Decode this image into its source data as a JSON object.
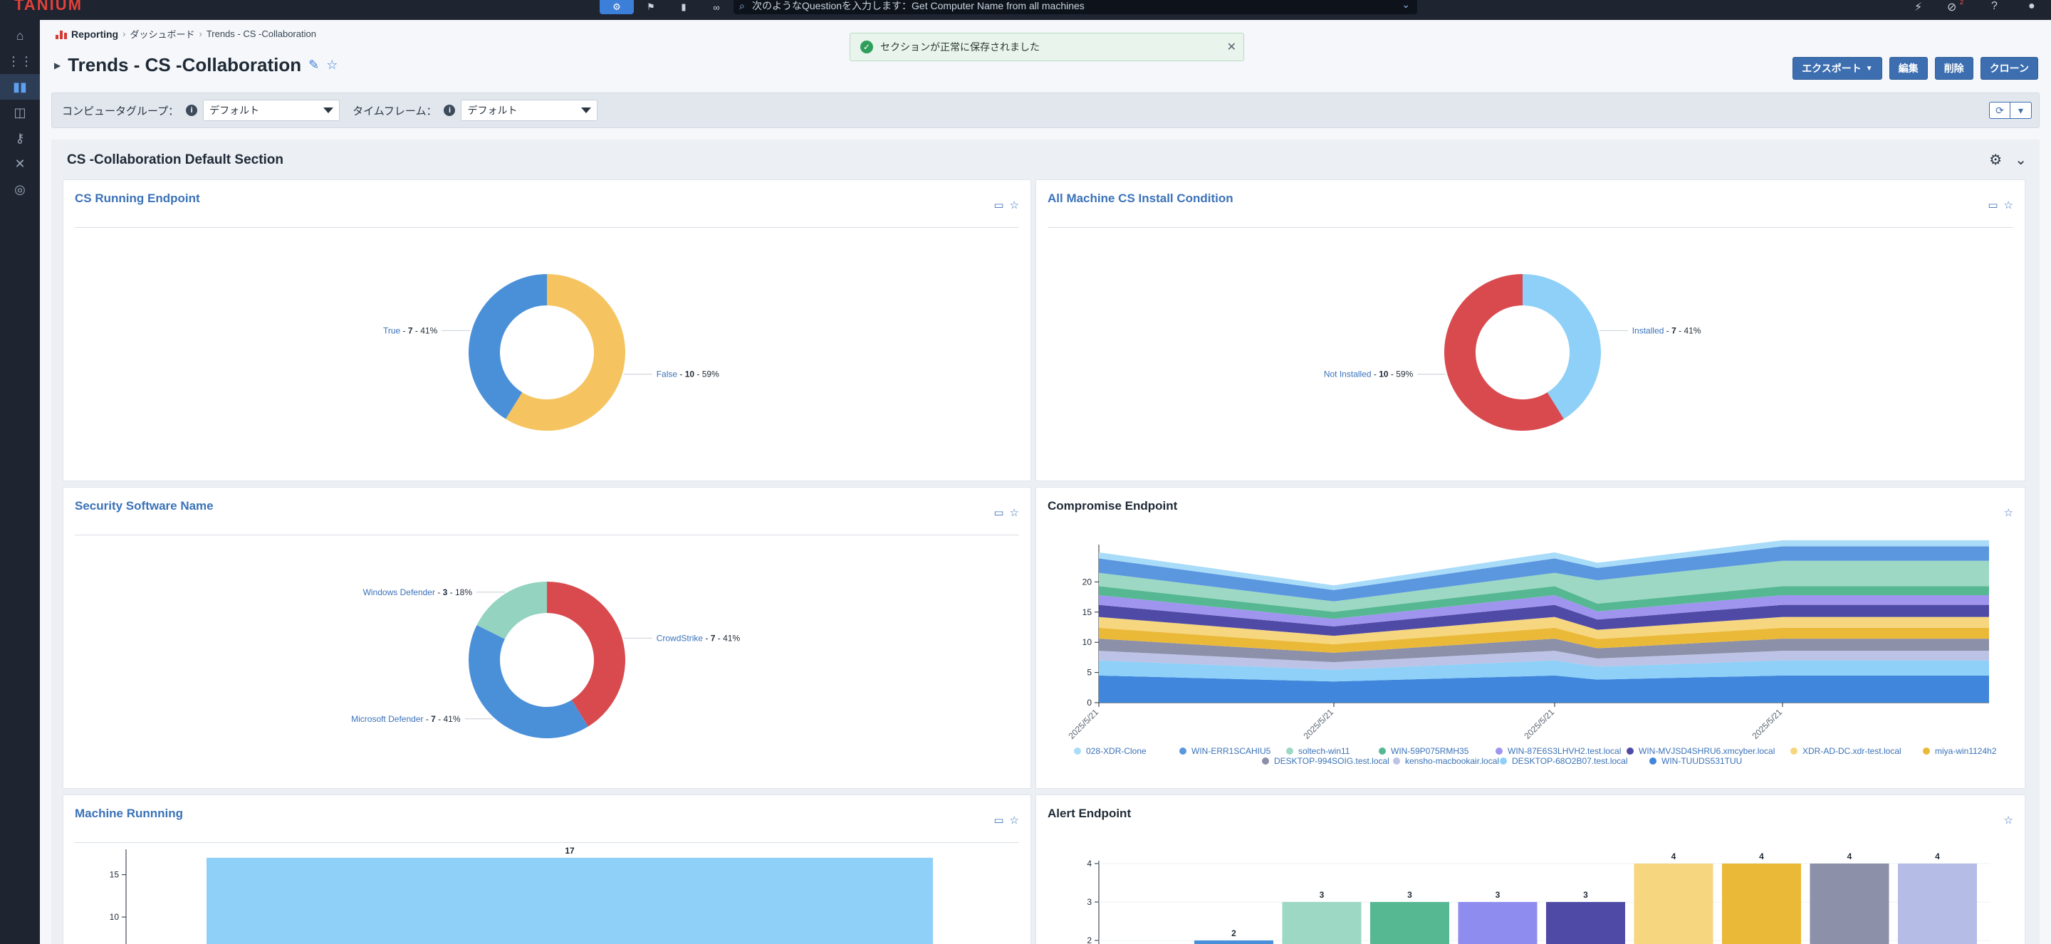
{
  "topbar": {
    "logo": "TANIUM",
    "search_placeholder": "次のようなQuestionを入力します：Get Computer Name from all machines",
    "badge": "2"
  },
  "breadcrumb": {
    "root": "Reporting",
    "level1": "ダッシュボード",
    "level2": "Trends - CS -Collaboration"
  },
  "toast": {
    "message": "セクションが正常に保存されました"
  },
  "page": {
    "title": "Trends - CS -Collaboration"
  },
  "actions": {
    "export": "エクスポート",
    "edit": "編集",
    "delete": "削除",
    "clone": "クローン"
  },
  "filters": {
    "computer_group_label": "コンピュータグループ：",
    "computer_group_value": "デフォルト",
    "timeframe_label": "タイムフレーム：",
    "timeframe_value": "デフォルト"
  },
  "section": {
    "title": "CS -Collaboration Default Section"
  },
  "cards": {
    "cs_running": {
      "title": "CS Running Endpoint"
    },
    "install_condition": {
      "title": "All Machine CS Install Condition"
    },
    "security_software": {
      "title": "Security Software Name"
    },
    "compromise": {
      "title": "Compromise Endpoint"
    },
    "machine_running": {
      "title": "Machine Runnning"
    },
    "alert_endpoint": {
      "title": "Alert Endpoint"
    }
  },
  "colors": {
    "accent": "#3d6eb0",
    "title_blue": "#3a72b8"
  },
  "chart_data": [
    {
      "id": "cs_running",
      "type": "pie",
      "title": "CS Running Endpoint",
      "slices": [
        {
          "label": "True",
          "value": 7,
          "percent": "41%",
          "color": "#4a90d9"
        },
        {
          "label": "False",
          "value": 10,
          "percent": "59%",
          "color": "#f5c460"
        }
      ]
    },
    {
      "id": "install_condition",
      "type": "pie",
      "title": "All Machine CS Install Condition",
      "slices": [
        {
          "label": "Installed",
          "value": 7,
          "percent": "41%",
          "color": "#8ed0f7"
        },
        {
          "label": "Not Installed",
          "value": 10,
          "percent": "59%",
          "color": "#d94a4f"
        }
      ]
    },
    {
      "id": "security_software",
      "type": "pie",
      "title": "Security Software Name",
      "slices": [
        {
          "label": "CrowdStrike",
          "value": 7,
          "percent": "41%",
          "color": "#d94a4f"
        },
        {
          "label": "Microsoft Defender",
          "value": 7,
          "percent": "41%",
          "color": "#4a90d9"
        },
        {
          "label": "Windows Defender",
          "value": 3,
          "percent": "18%",
          "color": "#93d3c0"
        }
      ]
    },
    {
      "id": "compromise",
      "type": "area",
      "title": "Compromise Endpoint",
      "x": [
        "2025/5/21",
        "2025/5/21",
        "2025/5/21",
        "2025/5/21"
      ],
      "ylim": [
        0,
        25
      ],
      "yticks": [
        0,
        5,
        10,
        15,
        20
      ],
      "series": [
        {
          "name": "028-XDR-Clone",
          "color": "#a9dcf8"
        },
        {
          "name": "WIN-ERR1SCAHIU5",
          "color": "#5b97df"
        },
        {
          "name": "soltech-win11",
          "color": "#9cd8c4"
        },
        {
          "name": "WIN-59P075RMH35",
          "color": "#55b892"
        },
        {
          "name": "WIN-87E6S3LHVH2.test.local",
          "color": "#9f95ee"
        },
        {
          "name": "WIN-MVJSD4SHRU6.xmcyber.local",
          "color": "#4f4aa6"
        },
        {
          "name": "XDR-AD-DC.xdr-test.local",
          "color": "#f6d67f"
        },
        {
          "name": "miya-win1124h2",
          "color": "#ebb938"
        },
        {
          "name": "DESKTOP-994SOIG.test.local",
          "color": "#8c90a8"
        },
        {
          "name": "kensho-macbookair.local",
          "color": "#bcc3e6"
        },
        {
          "name": "DESKTOP-68O2B07.test.local",
          "color": "#8ed0f7"
        },
        {
          "name": "WIN-TUUDS531TUU",
          "color": "#3f86dc"
        }
      ]
    },
    {
      "id": "machine_running",
      "type": "bar",
      "title": "Machine Runnning",
      "categories": [
        ""
      ],
      "values": [
        17
      ],
      "yticks": [
        10,
        15
      ],
      "color": "#8ed0f7"
    },
    {
      "id": "alert_endpoint",
      "type": "bar",
      "title": "Alert Endpoint",
      "values": [
        2,
        3,
        3,
        3,
        3,
        4,
        4,
        4,
        4
      ],
      "colors": [
        "#4a90d9",
        "#9cd8c4",
        "#55b892",
        "#8f8cf0",
        "#4f4aa6",
        "#f6d67f",
        "#ebb938",
        "#8c90a8",
        "#b5bde6"
      ],
      "yticks": [
        2,
        3,
        4
      ]
    }
  ]
}
